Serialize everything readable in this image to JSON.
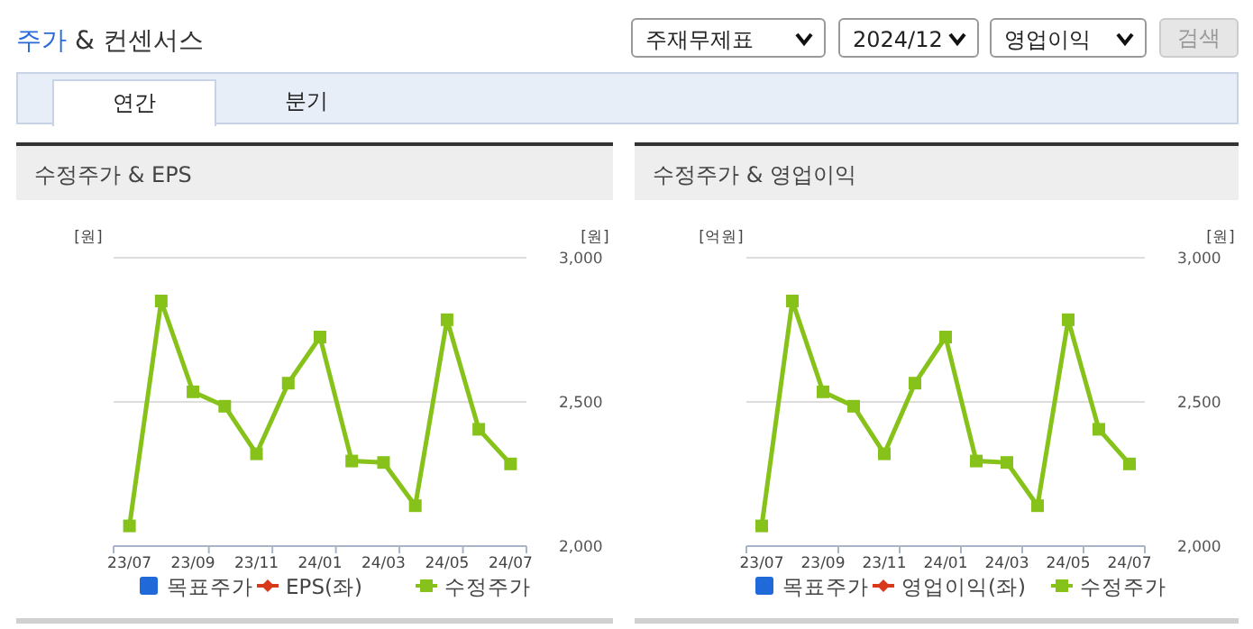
{
  "chart_data": [
    {
      "type": "line",
      "title": "수정주가 & EPS",
      "ylabel": "[원]",
      "y2label": "[원]",
      "annotations": [
        "주가 & 컨센서스",
        "주재무제표",
        "2024/12",
        "영업이익",
        "검색",
        "연간",
        "분기"
      ],
      "categories": [
        "23/07",
        null,
        "23/09",
        null,
        "23/11",
        null,
        "24/01",
        null,
        "24/03",
        null,
        "24/05",
        null,
        "24/07"
      ],
      "y2lim": [
        2000,
        3000
      ],
      "y2ticks": [
        {
          "value": 2000,
          "label": "2,000"
        },
        {
          "value": 2500,
          "label": "2,500"
        },
        {
          "value": 3000,
          "label": "3,000"
        }
      ],
      "grid": true,
      "legend": "bottom",
      "series": [
        {
          "name": "목표주가",
          "type": "scatter",
          "marker": "square",
          "color": "#1f6ad8",
          "values": [
            null,
            null,
            null,
            null,
            null,
            null,
            null,
            null,
            null,
            null,
            null,
            null,
            null
          ]
        },
        {
          "name": "EPS(좌)",
          "marker": "diamond",
          "color": "#d8391a",
          "values": [
            null,
            null,
            null,
            null,
            null,
            null,
            null,
            null,
            null,
            null,
            null,
            null,
            null
          ]
        },
        {
          "name": "수정주가",
          "type": "line",
          "marker": "square",
          "axis": "y2",
          "color": "#86c21a",
          "values": [
            2070,
            2850,
            2535,
            2485,
            2320,
            2565,
            2725,
            2295,
            2290,
            2140,
            2785,
            2405,
            2285
          ]
        }
      ]
    },
    {
      "type": "line",
      "title": "수정주가 & 영업이익",
      "ylabel": "[억원]",
      "y2label": "[원]",
      "categories": [
        "23/07",
        null,
        "23/09",
        null,
        "23/11",
        null,
        "24/01",
        null,
        "24/03",
        null,
        "24/05",
        null,
        "24/07"
      ],
      "y2lim": [
        2000,
        3000
      ],
      "y2ticks": [
        {
          "value": 2000,
          "label": "2,000"
        },
        {
          "value": 2500,
          "label": "2,500"
        },
        {
          "value": 3000,
          "label": "3,000"
        }
      ],
      "grid": true,
      "legend": "bottom",
      "series": [
        {
          "name": "목표주가",
          "type": "scatter",
          "marker": "square",
          "color": "#1f6ad8",
          "values": [
            null,
            null,
            null,
            null,
            null,
            null,
            null,
            null,
            null,
            null,
            null,
            null,
            null
          ]
        },
        {
          "name": "영업이익(좌)",
          "marker": "diamond",
          "color": "#d8391a",
          "values": [
            null,
            null,
            null,
            null,
            null,
            null,
            null,
            null,
            null,
            null,
            null,
            null,
            null
          ]
        },
        {
          "name": "수정주가",
          "type": "line",
          "marker": "square",
          "axis": "y2",
          "color": "#86c21a",
          "values": [
            2070,
            2850,
            2535,
            2485,
            2320,
            2565,
            2725,
            2295,
            2290,
            2140,
            2785,
            2405,
            2285
          ]
        }
      ]
    }
  ]
}
